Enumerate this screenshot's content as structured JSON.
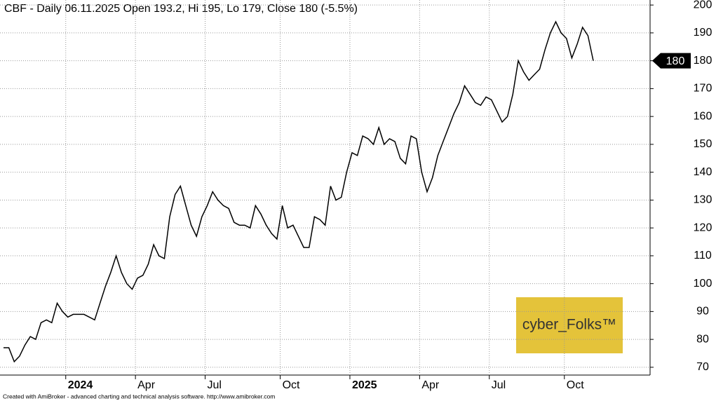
{
  "chart_data": {
    "type": "line",
    "title": "CBF - Daily 06.11.2025 Open 193.2, Hi 195, Lo 179, Close 180 (-5.5%)",
    "categories": [
      null,
      null,
      null,
      null,
      null,
      null,
      null,
      null,
      null,
      null,
      null,
      null,
      "2024",
      null,
      null,
      null,
      null,
      null,
      null,
      null,
      null,
      null,
      null,
      null,
      null,
      "Apr",
      null,
      null,
      null,
      null,
      null,
      null,
      null,
      null,
      null,
      null,
      null,
      null,
      "Jul",
      null,
      null,
      null,
      null,
      null,
      null,
      null,
      null,
      null,
      null,
      null,
      null,
      null,
      "Oct",
      null,
      null,
      null,
      null,
      null,
      null,
      null,
      null,
      null,
      null,
      null,
      null,
      "2025",
      null,
      null,
      null,
      null,
      null,
      null,
      null,
      null,
      null,
      null,
      null,
      null,
      "Apr",
      null,
      null,
      null,
      null,
      null,
      null,
      null,
      null,
      null,
      null,
      null,
      null,
      "Jul",
      null,
      null,
      null,
      null,
      null,
      null,
      null,
      null,
      null,
      null,
      null,
      null,
      null,
      "Oct",
      null,
      null,
      null,
      null,
      null
    ],
    "values": [
      77,
      77,
      72,
      74,
      78,
      81,
      80,
      86,
      87,
      86,
      93,
      90,
      88,
      89,
      89,
      89,
      88,
      87,
      93,
      99,
      104,
      110,
      104,
      100,
      98,
      102,
      103,
      107,
      114,
      110,
      109,
      124,
      132,
      135,
      128,
      121,
      117,
      124,
      128,
      133,
      130,
      128,
      127,
      122,
      121,
      121,
      120,
      128,
      125,
      121,
      118,
      116,
      128,
      120,
      121,
      117,
      113,
      113,
      124,
      123,
      121,
      135,
      130,
      131,
      140,
      147,
      146,
      153,
      152,
      150,
      156,
      150,
      152,
      151,
      145,
      143,
      153,
      152,
      140,
      133,
      138,
      146,
      151,
      156,
      161,
      165,
      171,
      168,
      165,
      164,
      167,
      166,
      162,
      158,
      160,
      168,
      180,
      176,
      173,
      175,
      177,
      184,
      190,
      194,
      190,
      188,
      181,
      186,
      192,
      189,
      180
    ],
    "color": "#000000",
    "ylim": [
      67.2,
      201.8
    ],
    "yticks": [
      70,
      80,
      90,
      100,
      110,
      120,
      130,
      140,
      150,
      160,
      170,
      180,
      190,
      200
    ],
    "grid": true,
    "logo": "cyber_Folks™",
    "footer": "Created with AmiBroker - advanced charting and technical analysis software. http://www.amibroker.com"
  }
}
